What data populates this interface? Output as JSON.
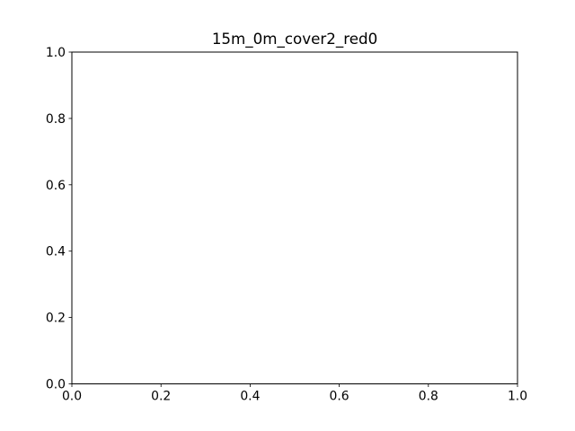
{
  "chart_data": {
    "type": "line",
    "title": "15m_0m_cover2_red0",
    "xlabel": "",
    "ylabel": "",
    "xlim": [
      0.0,
      1.0
    ],
    "ylim": [
      0.0,
      1.0
    ],
    "xticks": [
      "0.0",
      "0.2",
      "0.4",
      "0.6",
      "0.8",
      "1.0"
    ],
    "yticks": [
      "0.0",
      "0.2",
      "0.4",
      "0.6",
      "0.8",
      "1.0"
    ],
    "grid": false,
    "series": []
  }
}
